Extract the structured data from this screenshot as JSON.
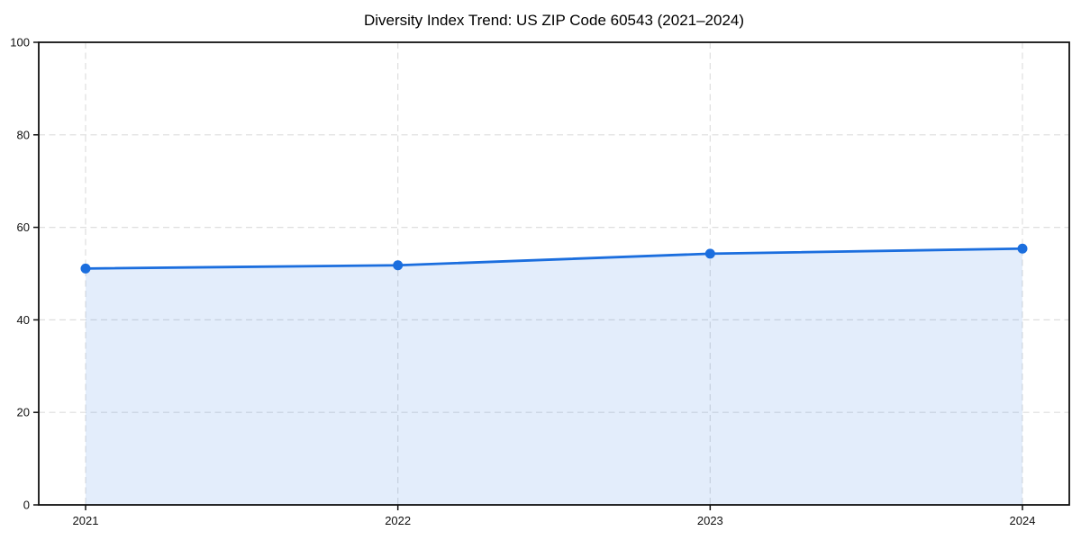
{
  "chart_data": {
    "type": "area",
    "title": "Diversity Index Trend: US ZIP Code 60543 (2021–2024)",
    "x": [
      2021,
      2022,
      2023,
      2024
    ],
    "series": [
      {
        "name": "Diversity Index",
        "values": [
          51.1,
          51.8,
          54.3,
          55.4
        ]
      }
    ],
    "xlabel": "",
    "ylabel": "",
    "ylim": [
      0,
      100
    ],
    "yticks": [
      0,
      20,
      40,
      60,
      80,
      100
    ],
    "grid": "dashed both axes",
    "legend": "none",
    "markers": true,
    "colors": {
      "line": "#1b6ede",
      "marker": "#1b6ede",
      "grid": "#dedede",
      "spine": "#111111",
      "text": "#111111",
      "background": "#ffffff"
    }
  }
}
